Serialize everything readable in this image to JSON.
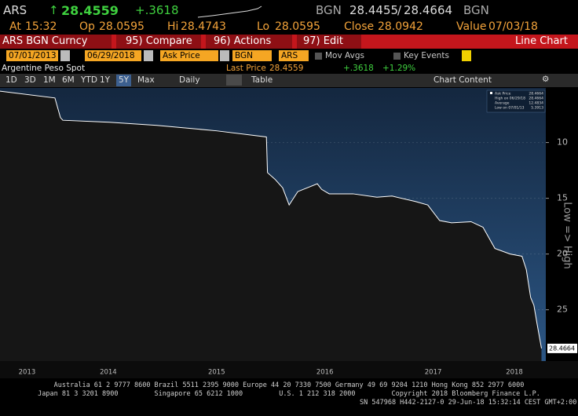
{
  "header": {
    "ticker": "ARS",
    "arrow": "↑",
    "last": "28.4559",
    "change": "+.3618",
    "bid_source": "BGN",
    "bid": "28.4455",
    "separator": "/",
    "ask": "28.4664",
    "ask_source": "BGN"
  },
  "quote": {
    "at_label": "At",
    "at": "15:32",
    "open_label": "Op",
    "open": "28.0595",
    "high_label": "Hi",
    "high": "28.4743",
    "low_label": "Lo",
    "low": "28.0595",
    "close_label": "Close",
    "close": "28.0942",
    "value_label": "Value",
    "value_date": "07/03/18"
  },
  "menu": {
    "security": "ARS BGN Curncy",
    "compare": "95) Compare",
    "actions": "96) Actions",
    "edit": "97) Edit",
    "chart_type": "Line Chart"
  },
  "controls": {
    "start_date": "07/01/2013",
    "end_date": "06/29/2018",
    "field": "Ask Price",
    "source": "BGN",
    "currency": "ARS",
    "mov_avgs": "Mov Avgs",
    "key_events": "Key Events"
  },
  "info": {
    "name": "Argentine Peso Spot",
    "last_label": "Last Price",
    "last": "28.4559",
    "change": "+.3618",
    "change_pct": "+1.29%"
  },
  "toolbar": {
    "ranges": [
      "1D",
      "3D",
      "1M",
      "6M",
      "YTD",
      "1Y",
      "5Y",
      "Max"
    ],
    "active_range": 6,
    "frequency": "Daily",
    "table": "Table",
    "chart_content": "Chart Content"
  },
  "chart_data": {
    "type": "line",
    "y_axis_label": "Low => High",
    "y_inverted": true,
    "x": [
      2013.5,
      2014.007,
      2014.058,
      2014.08,
      2014.51,
      2014.95,
      2015.5,
      2015.96,
      2015.97,
      2016.04,
      2016.11,
      2016.17,
      2016.25,
      2016.43,
      2016.47,
      2016.54,
      2016.76,
      2016.98,
      2017.12,
      2017.34,
      2017.45,
      2017.56,
      2017.67,
      2017.85,
      2017.96,
      2018.07,
      2018.21,
      2018.32,
      2018.36,
      2018.4,
      2018.43,
      2018.46,
      2018.5
    ],
    "series": [
      {
        "name": "Ask Price",
        "color": "#ffffff",
        "values": [
          5.3913,
          6.0,
          7.76,
          8.0,
          8.18,
          8.46,
          8.95,
          9.5,
          12.7,
          13.3,
          14.06,
          15.6,
          14.4,
          13.7,
          14.2,
          14.6,
          14.6,
          14.9,
          14.8,
          15.3,
          15.6,
          17.0,
          17.2,
          17.1,
          17.6,
          19.5,
          20.0,
          20.2,
          21.4,
          23.9,
          24.6,
          26.3,
          28.4664
        ]
      }
    ],
    "last_label": "28.4664",
    "xlim": [
      2013.5,
      2018.54
    ],
    "xticks": [
      {
        "value": 2013.75,
        "label": "2013"
      },
      {
        "value": 2014.5,
        "label": "2014"
      },
      {
        "value": 2015.5,
        "label": "2015"
      },
      {
        "value": 2016.5,
        "label": "2016"
      },
      {
        "value": 2017.5,
        "label": "2017"
      },
      {
        "value": 2018.25,
        "label": "2018"
      }
    ],
    "ylim": [
      5.1,
      29.6
    ],
    "yticks": [
      10,
      15,
      20,
      25
    ],
    "grid": true,
    "legend": {
      "position": "upper right",
      "stats": [
        {
          "label": "High on 06/29/18",
          "value": "28.4664"
        },
        {
          "label": "Average",
          "value": "12.4834"
        },
        {
          "label": "Low on 07/01/13",
          "value": "5.3913"
        }
      ]
    }
  },
  "footer": {
    "lines": [
      "Australia 61 2 9777 8600 Brazil 5511 2395 9000 Europe 44 20 7330 7500 Germany 49 69 9204 1210 Hong Kong 852 2977 6000",
      "Japan 81 3 3201 8900         Singapore 65 6212 1000         U.S. 1 212 318 2000         Copyright 2018 Bloomberg Finance L.P.",
      "SN 547968 H442-2127-0 29-Jun-18 15:32:14 CEST GMT+2:00"
    ]
  }
}
